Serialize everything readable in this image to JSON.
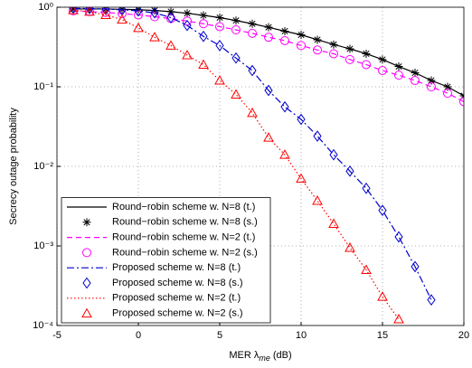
{
  "chart_data": {
    "type": "line",
    "x_label": [
      "MER λ",
      "me",
      "(dB)"
    ],
    "y_label": "Secrecy outage probability",
    "log_y": true,
    "grid": true,
    "legend": "lower left",
    "xlim": [
      -5,
      20
    ],
    "xticks": [
      -5,
      0,
      5,
      10,
      15,
      20
    ],
    "ylim": [
      0.0001,
      1
    ],
    "yticks": [
      {
        "value": 0.0001,
        "label": "10⁻⁴"
      },
      {
        "value": 0.001,
        "label": "10⁻³"
      },
      {
        "value": 0.01,
        "label": "10⁻²"
      },
      {
        "value": 0.1,
        "label": "10⁻¹"
      },
      {
        "value": 1,
        "label": "10⁰"
      }
    ],
    "x": [
      -4,
      -3,
      -2,
      -1,
      0,
      1,
      2,
      3,
      4,
      5,
      6,
      7,
      8,
      9,
      10,
      11,
      12,
      13,
      14,
      15,
      16,
      17,
      18,
      19,
      20
    ],
    "series": [
      {
        "name": "Round−robin scheme w. N=8 (t.)",
        "color": "#000000",
        "style": "solid",
        "values": [
          0.95,
          0.95,
          0.95,
          0.94,
          0.93,
          0.91,
          0.88,
          0.84,
          0.79,
          0.74,
          0.68,
          0.62,
          0.56,
          0.5,
          0.45,
          0.39,
          0.34,
          0.3,
          0.26,
          0.22,
          0.18,
          0.15,
          0.12,
          0.1,
          0.077
        ]
      },
      {
        "name": "Round−robin scheme w. N=8 (s.)",
        "color": "#000000",
        "marker": "star",
        "values": [
          0.95,
          0.95,
          0.95,
          0.94,
          0.93,
          0.91,
          0.88,
          0.84,
          0.79,
          0.74,
          0.68,
          0.62,
          0.56,
          0.5,
          0.45,
          0.39,
          0.34,
          0.3,
          0.26,
          0.22,
          0.18,
          0.15,
          0.12,
          0.1,
          0.077
        ]
      },
      {
        "name": "Round−robin scheme w. N=2 (t.)",
        "color": "#ff00ff",
        "style": "dashed",
        "values": [
          0.9,
          0.88,
          0.86,
          0.83,
          0.8,
          0.76,
          0.72,
          0.67,
          0.62,
          0.57,
          0.52,
          0.47,
          0.42,
          0.38,
          0.33,
          0.29,
          0.26,
          0.22,
          0.19,
          0.16,
          0.14,
          0.12,
          0.1,
          0.083,
          0.065
        ]
      },
      {
        "name": "Round−robin scheme w. N=2 (s.)",
        "color": "#ff00ff",
        "marker": "circle",
        "values": [
          0.9,
          0.88,
          0.86,
          0.83,
          0.8,
          0.76,
          0.72,
          0.67,
          0.62,
          0.57,
          0.52,
          0.47,
          0.42,
          0.38,
          0.33,
          0.29,
          0.26,
          0.22,
          0.19,
          0.16,
          0.14,
          0.12,
          0.1,
          0.083,
          0.065
        ]
      },
      {
        "name": "Proposed scheme w. N=8 (t.)",
        "color": "#0000cc",
        "style": "dashdot",
        "values": [
          0.97,
          0.96,
          0.95,
          0.93,
          0.9,
          0.85,
          0.74,
          0.59,
          0.43,
          0.33,
          0.23,
          0.16,
          0.09,
          0.056,
          0.039,
          0.024,
          0.014,
          0.0087,
          0.0053,
          0.0028,
          0.0013,
          0.00055,
          0.00021,
          null,
          null
        ]
      },
      {
        "name": "Proposed scheme w. N=8 (s.)",
        "color": "#0000cc",
        "marker": "diamond",
        "values": [
          0.97,
          0.96,
          0.95,
          0.93,
          0.9,
          0.85,
          0.74,
          0.59,
          0.43,
          0.33,
          0.23,
          0.16,
          0.09,
          0.056,
          0.039,
          0.024,
          0.014,
          0.0087,
          0.0053,
          0.0028,
          0.0013,
          0.00055,
          0.00021,
          null,
          null
        ]
      },
      {
        "name": "Proposed scheme w. N=2 (t.)",
        "color": "#ff0000",
        "style": "dotted",
        "values": [
          0.92,
          0.88,
          0.8,
          0.7,
          0.55,
          0.42,
          0.33,
          0.25,
          0.19,
          0.12,
          0.08,
          0.047,
          0.023,
          0.014,
          0.007,
          0.0037,
          0.0019,
          0.00095,
          0.0005,
          0.00023,
          0.00012,
          null,
          null,
          null,
          null
        ]
      },
      {
        "name": "Proposed scheme w. N=2 (s.)",
        "color": "#ff0000",
        "marker": "triangle",
        "values": [
          0.92,
          0.88,
          0.8,
          0.7,
          0.55,
          0.42,
          0.33,
          0.25,
          0.19,
          0.12,
          0.08,
          0.047,
          0.023,
          0.014,
          0.007,
          0.0037,
          0.0019,
          0.00095,
          0.0005,
          0.00023,
          0.00012,
          null,
          null,
          null,
          null
        ]
      }
    ]
  }
}
